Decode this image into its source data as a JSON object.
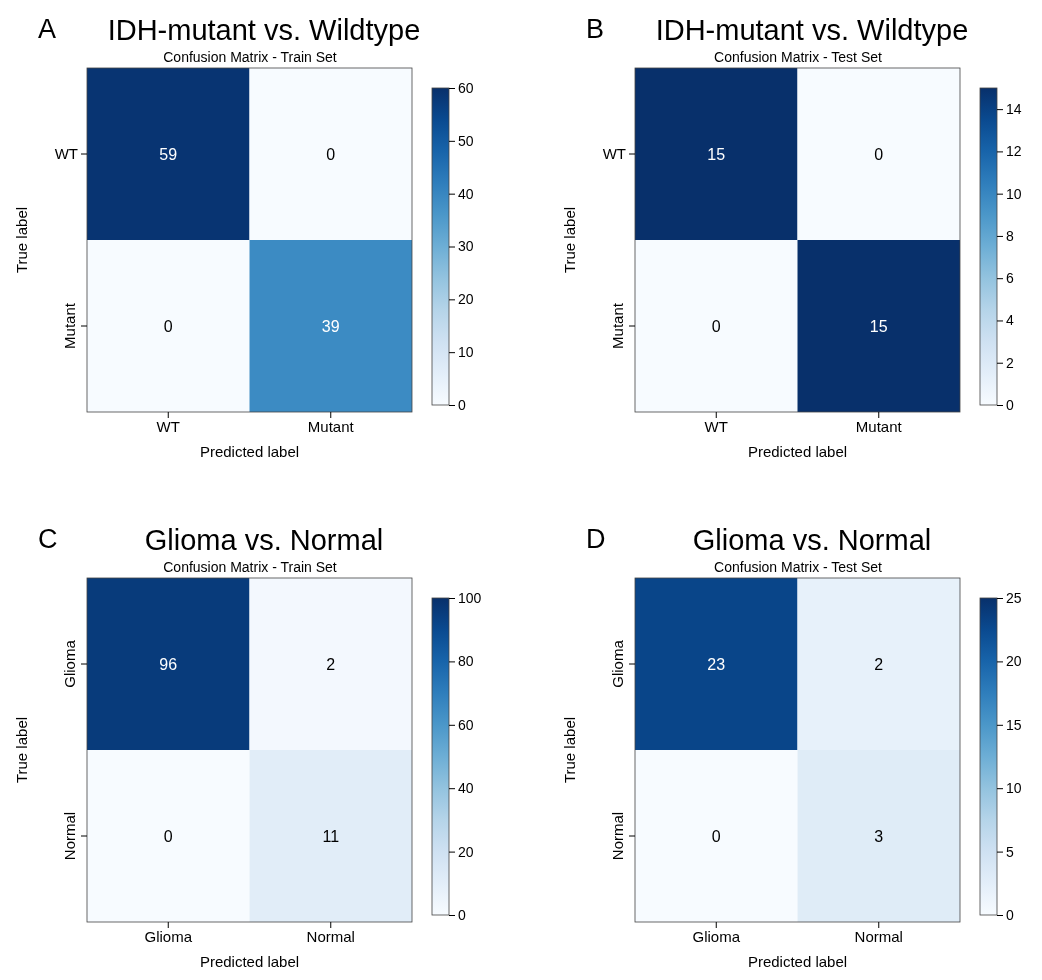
{
  "chart_data": [
    {
      "type": "heatmap",
      "title": "IDH-mutant vs. Wildtype",
      "subtitle": "Confusion Matrix - Train Set",
      "annotations": [
        "A"
      ],
      "xlabel": "Predicted label",
      "ylabel": "True label",
      "categories": [
        "WT",
        "Mutant"
      ],
      "y_categories": [
        "WT",
        "Mutant"
      ],
      "cells": [
        [
          59,
          0
        ],
        [
          0,
          39
        ]
      ],
      "clim": [
        0,
        60
      ],
      "cticks": [
        0,
        10,
        20,
        30,
        40,
        50,
        60
      ],
      "data_labels": true
    },
    {
      "type": "heatmap",
      "title": "IDH-mutant vs. Wildtype",
      "subtitle": "Confusion Matrix - Test Set",
      "annotations": [
        "B"
      ],
      "xlabel": "Predicted label",
      "ylabel": "True label",
      "categories": [
        "WT",
        "Mutant"
      ],
      "y_categories": [
        "WT",
        "Mutant"
      ],
      "cells": [
        [
          15,
          0
        ],
        [
          0,
          15
        ]
      ],
      "clim": [
        0,
        15
      ],
      "cticks": [
        0,
        2,
        4,
        6,
        8,
        10,
        12,
        14
      ],
      "data_labels": true
    },
    {
      "type": "heatmap",
      "title": "Glioma vs. Normal",
      "subtitle": "Confusion Matrix - Train Set",
      "annotations": [
        "C"
      ],
      "xlabel": "Predicted label",
      "ylabel": "True label",
      "categories": [
        "Glioma",
        "Normal"
      ],
      "y_categories": [
        "Glioma",
        "Normal"
      ],
      "cells": [
        [
          96,
          2
        ],
        [
          0,
          11
        ]
      ],
      "clim": [
        0,
        100
      ],
      "cticks": [
        0,
        20,
        40,
        60,
        80,
        100
      ],
      "data_labels": true
    },
    {
      "type": "heatmap",
      "title": "Glioma vs. Normal",
      "subtitle": "Confusion Matrix - Test Set",
      "annotations": [
        "D"
      ],
      "xlabel": "Predicted label",
      "ylabel": "True label",
      "categories": [
        "Glioma",
        "Normal"
      ],
      "y_categories": [
        "Glioma",
        "Normal"
      ],
      "cells": [
        [
          23,
          2
        ],
        [
          0,
          3
        ]
      ],
      "clim": [
        0,
        25
      ],
      "cticks": [
        0,
        5,
        10,
        15,
        20,
        25
      ],
      "data_labels": true
    }
  ]
}
